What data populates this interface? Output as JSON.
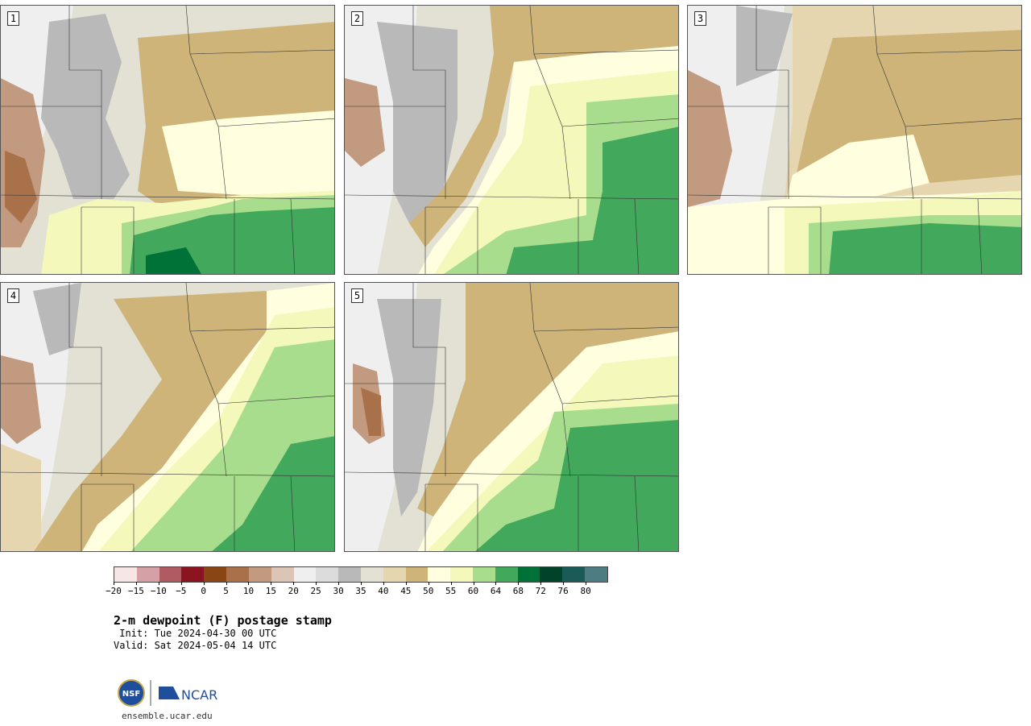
{
  "panels": [
    {
      "label": "1"
    },
    {
      "label": "2"
    },
    {
      "label": "3"
    },
    {
      "label": "4"
    },
    {
      "label": "5"
    }
  ],
  "colorbar": {
    "colors": [
      "#f7e6e6",
      "#d5a0a6",
      "#b05a62",
      "#8a1420",
      "#8a4514",
      "#a8714a",
      "#c29a80",
      "#dcc5b4",
      "#efefef",
      "#dcdcdc",
      "#b9b9b9",
      "#e2e1d4",
      "#e5d6b0",
      "#cfb47a",
      "#ffffe0",
      "#f4f9bb",
      "#a9dd8e",
      "#41a85c",
      "#007237",
      "#00432a",
      "#1a5b57",
      "#4f7c82"
    ],
    "tick_labels": [
      "−20",
      "−15",
      "−10",
      "−5",
      "0",
      "5",
      "10",
      "15",
      "20",
      "25",
      "30",
      "35",
      "40",
      "45",
      "50",
      "55",
      "60",
      "64",
      "68",
      "72",
      "76",
      "80"
    ]
  },
  "title": "2-m dewpoint (F) postage stamp",
  "init": " Init: Tue 2024-04-30 00 UTC",
  "valid": "Valid: Sat 2024-05-04 14 UTC",
  "logo": {
    "nsf": "NSF",
    "ncar": "NCAR"
  },
  "url": "ensemble.ucar.edu"
}
